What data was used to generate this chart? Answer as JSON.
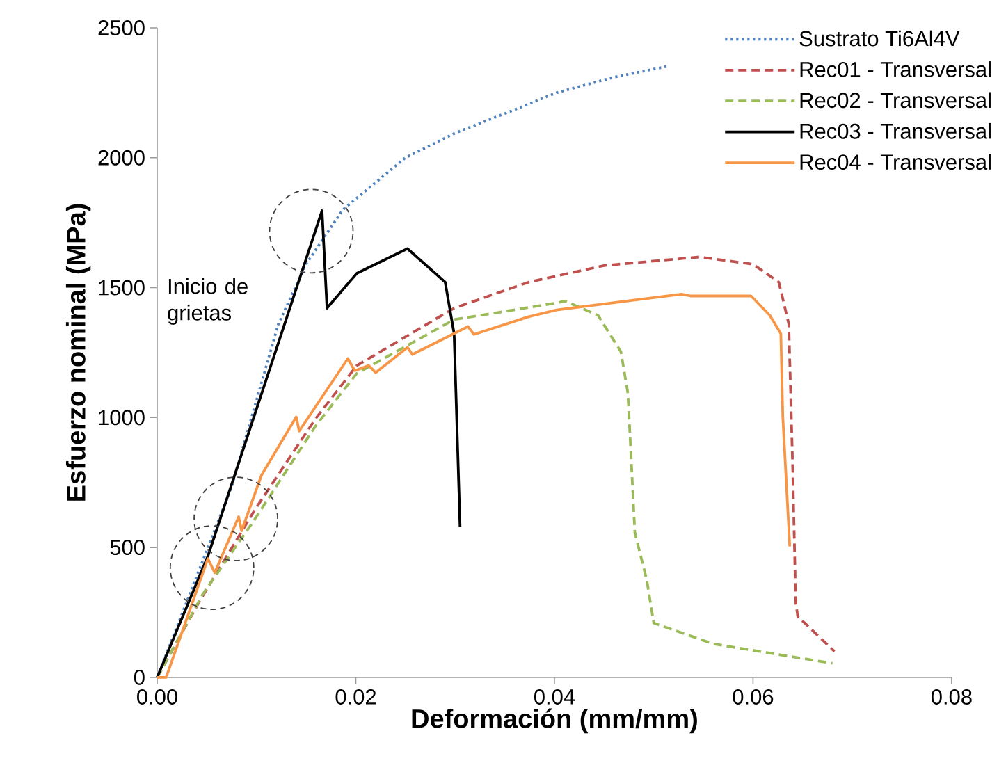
{
  "chart_data": {
    "type": "line",
    "xlabel": "Deformación (mm/mm)",
    "ylabel": "Esfuerzo nominal  (MPa)",
    "xlim": [
      0,
      0.08
    ],
    "ylim": [
      0,
      2500
    ],
    "xticks": [
      {
        "value": 0,
        "label": "0.00"
      },
      {
        "value": 0.02,
        "label": "0.02"
      },
      {
        "value": 0.04,
        "label": "0.04"
      },
      {
        "value": 0.06,
        "label": "0.06"
      },
      {
        "value": 0.08,
        "label": "0.08"
      }
    ],
    "yticks": [
      0,
      500,
      1000,
      1500,
      2000,
      2500
    ],
    "legend": "top right",
    "marker": "none",
    "annotations": [
      "Inicio de grietas"
    ],
    "series": [
      {
        "name": "Sustrato Ti6Al4V",
        "color": "#4f81bd",
        "line_style": "dotted",
        "x": [
          0,
          0.0075,
          0.0122,
          0.015,
          0.0187,
          0.025,
          0.03,
          0.035,
          0.0402,
          0.046,
          0.0514
        ],
        "values": [
          0,
          734,
          1360,
          1591,
          1800,
          2000,
          2095,
          2170,
          2250,
          2310,
          2352
        ]
      },
      {
        "name": "Rec01 - Transversal",
        "color": "#c0504d",
        "line_style": "dashed",
        "x": [
          0,
          0.0042,
          0.0098,
          0.0159,
          0.0201,
          0.0299,
          0.0374,
          0.045,
          0.0546,
          0.06,
          0.0626,
          0.0636,
          0.064,
          0.0643,
          0.0645,
          0.0682
        ],
        "values": [
          0,
          289,
          643,
          993,
          1200,
          1421,
          1521,
          1585,
          1618,
          1590,
          1521,
          1360,
          800,
          289,
          235,
          100
        ]
      },
      {
        "name": "Rec02 - Transversal",
        "color": "#9bbb59",
        "line_style": "dashed",
        "x": [
          0,
          0.0046,
          0.0098,
          0.0159,
          0.0201,
          0.0299,
          0.0402,
          0.0411,
          0.0444,
          0.0467,
          0.0474,
          0.0481,
          0.0493,
          0.05,
          0.056,
          0.068
        ],
        "values": [
          0,
          321,
          607,
          965,
          1170,
          1377,
          1441,
          1448,
          1393,
          1253,
          1093,
          557,
          375,
          209,
          129,
          54
        ]
      },
      {
        "name": "Rec03 - Transversal",
        "color": "#000000",
        "line_style": "solid",
        "x": [
          0,
          0.0051,
          0.0166,
          0.0171,
          0.0201,
          0.0252,
          0.029,
          0.0299,
          0.0305
        ],
        "values": [
          0,
          466,
          1796,
          1421,
          1555,
          1650,
          1521,
          1323,
          578
        ]
      },
      {
        "name": "Rec04 - Transversal",
        "color": "#f79646",
        "line_style": "solid",
        "x": [
          0,
          0.0009,
          0.0051,
          0.0058,
          0.0082,
          0.0085,
          0.0105,
          0.014,
          0.0143,
          0.0192,
          0.0199,
          0.0213,
          0.022,
          0.0252,
          0.0257,
          0.0313,
          0.0319,
          0.0374,
          0.0402,
          0.0528,
          0.0537,
          0.0598,
          0.0617,
          0.0628,
          0.063,
          0.0637
        ],
        "values": [
          0,
          0,
          457,
          403,
          618,
          564,
          778,
          1002,
          948,
          1227,
          1180,
          1200,
          1173,
          1270,
          1243,
          1350,
          1320,
          1388,
          1414,
          1475,
          1468,
          1468,
          1393,
          1323,
          1002,
          504
        ]
      }
    ]
  }
}
